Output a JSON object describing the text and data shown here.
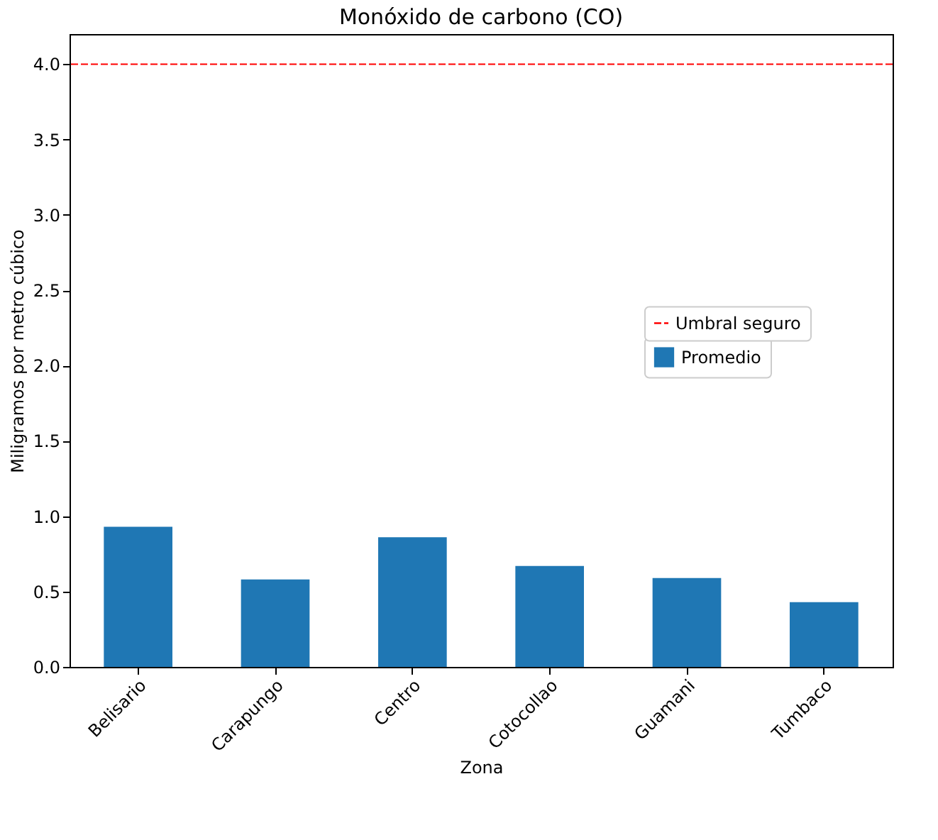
{
  "chart_data": {
    "type": "bar",
    "title": "Monóxido de carbono (CO)",
    "xlabel": "Zona",
    "ylabel": "Miligramos por metro cúbico",
    "categories": [
      "Belisario",
      "Carapungo",
      "Centro",
      "Cotocollao",
      "Guamani",
      "Tumbaco"
    ],
    "series": [
      {
        "name": "Promedio",
        "color": "#1f77b4",
        "values": [
          0.93,
          0.58,
          0.86,
          0.67,
          0.59,
          0.43
        ]
      }
    ],
    "ylim": [
      0,
      4.2
    ],
    "yticks": [
      {
        "value": 0,
        "label": "0.0"
      },
      {
        "value": 0.5,
        "label": "0.5"
      },
      {
        "value": 1,
        "label": "1.0"
      },
      {
        "value": 1.5,
        "label": "1.5"
      },
      {
        "value": 2,
        "label": "2.0"
      },
      {
        "value": 2.5,
        "label": "2.5"
      },
      {
        "value": 3,
        "label": "3.0"
      },
      {
        "value": 3.5,
        "label": "3.5"
      },
      {
        "value": 4,
        "label": "4.0"
      }
    ],
    "ref_lines": [
      {
        "axis": "y",
        "value": 4.0,
        "label": "Umbral seguro",
        "color": "#ff0000",
        "line_style": "dashed"
      }
    ],
    "legend": "right"
  }
}
